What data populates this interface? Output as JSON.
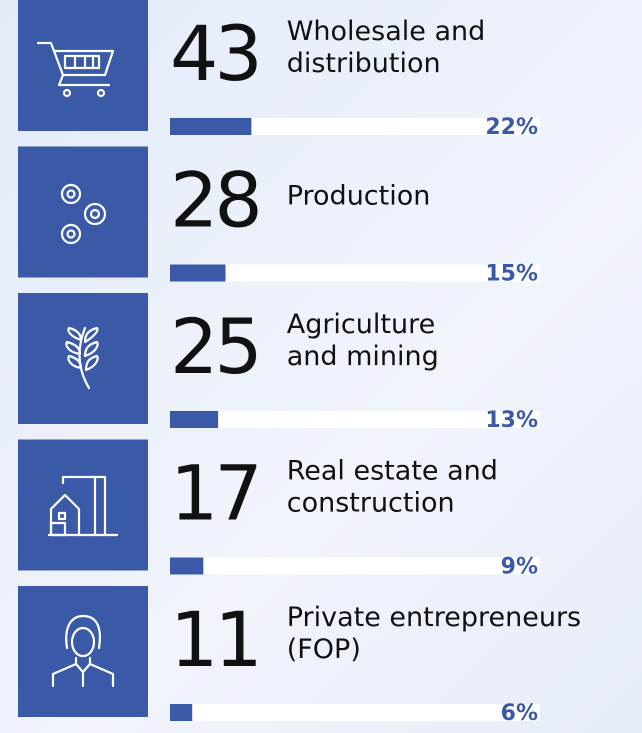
{
  "items": [
    {
      "count": 43,
      "label": [
        "Wholesale and",
        "distribution"
      ],
      "percent": 22,
      "percent_label": "22%"
    },
    {
      "count": 28,
      "label": [
        "Production"
      ],
      "percent": 15,
      "percent_label": "15%"
    },
    {
      "count": 25,
      "label": [
        "Agriculture",
        "and mining"
      ],
      "percent": 13,
      "percent_label": "13%"
    },
    {
      "count": 17,
      "label": [
        "Real estate and",
        "construction"
      ],
      "percent": 9,
      "percent_label": "9%"
    },
    {
      "count": 11,
      "label": [
        "Private entrepreneurs",
        "(FOP)"
      ],
      "percent": 6,
      "percent_label": "6%"
    }
  ]
}
